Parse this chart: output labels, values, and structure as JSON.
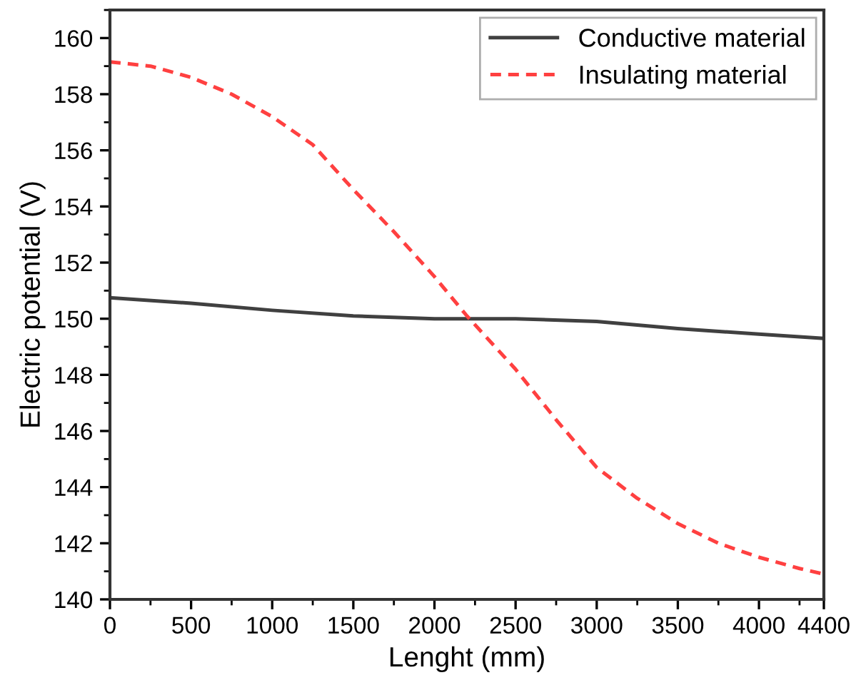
{
  "chart_data": {
    "type": "line",
    "xlabel": "Lenght (mm)",
    "ylabel": "Electric potential (V)",
    "xlim": [
      0,
      4400
    ],
    "ylim": [
      140,
      161
    ],
    "xticks": [
      0,
      500,
      1000,
      1500,
      2000,
      2500,
      3000,
      3500,
      4000,
      4400
    ],
    "yticks": [
      140,
      142,
      144,
      146,
      148,
      150,
      152,
      154,
      156,
      158,
      160
    ],
    "grid": false,
    "legend": "top right",
    "series": [
      {
        "name": "Conductive material",
        "color": "#404040",
        "line_style": "solid",
        "x": [
          0,
          500,
          1000,
          1500,
          2000,
          2500,
          3000,
          3500,
          4000,
          4400
        ],
        "values": [
          150.75,
          150.55,
          150.3,
          150.1,
          150.0,
          150.0,
          149.9,
          149.65,
          149.45,
          149.3
        ]
      },
      {
        "name": "Insulating material",
        "color": "#ff4040",
        "line_style": "dashed",
        "x": [
          0,
          250,
          500,
          750,
          1000,
          1250,
          1500,
          1750,
          2000,
          2200,
          2500,
          2750,
          3000,
          3250,
          3500,
          3750,
          4000,
          4250,
          4400
        ],
        "values": [
          159.15,
          159.0,
          158.6,
          158.0,
          157.2,
          156.2,
          154.6,
          153.1,
          151.5,
          150.1,
          148.2,
          146.4,
          144.7,
          143.6,
          142.7,
          142.0,
          141.5,
          141.1,
          140.9
        ]
      }
    ]
  }
}
